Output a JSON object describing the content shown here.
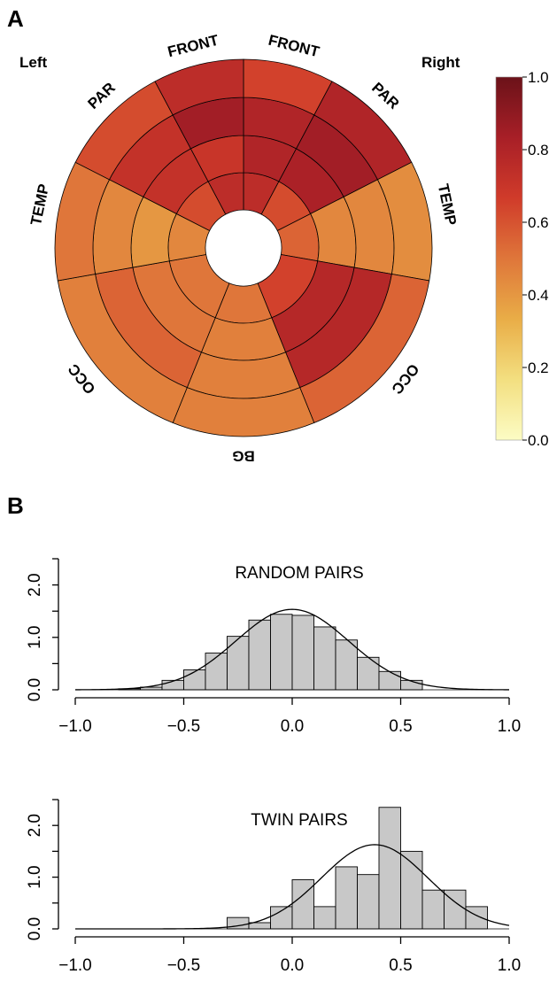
{
  "panels": {
    "a": "A",
    "b": "B"
  },
  "chart_data": [
    {
      "type": "heatmap",
      "panel": "A",
      "side_labels": {
        "left": "Left",
        "right": "Right"
      },
      "region_labels": [
        {
          "text": "FRONT",
          "angle": -14
        },
        {
          "text": "FRONT",
          "angle": 14
        },
        {
          "text": "PAR",
          "angle": 43
        },
        {
          "text": "TEMP",
          "angle": 78
        },
        {
          "text": "OCC",
          "angle": 129
        },
        {
          "text": "BG",
          "angle": 180
        },
        {
          "text": "OCC",
          "angle": -129
        },
        {
          "text": "TEMP",
          "angle": -78
        },
        {
          "text": "PAR",
          "angle": -43
        }
      ],
      "rings": 4,
      "sectors": [
        {
          "region": "Right FRONT",
          "start": 0,
          "end": 28,
          "values": [
            0.75,
            0.8,
            0.8,
            0.65
          ]
        },
        {
          "region": "Right PAR",
          "start": 28,
          "end": 63,
          "values": [
            0.62,
            0.82,
            0.85,
            0.8
          ]
        },
        {
          "region": "Right TEMP",
          "start": 63,
          "end": 100,
          "values": [
            0.55,
            0.45,
            0.45,
            0.43
          ]
        },
        {
          "region": "Right OCC",
          "start": 100,
          "end": 158,
          "values": [
            0.65,
            0.78,
            0.78,
            0.55
          ]
        },
        {
          "region": "BG",
          "start": 158,
          "end": 202,
          "values": [
            0.5,
            0.47,
            0.47,
            0.47
          ]
        },
        {
          "region": "Left OCC",
          "start": 202,
          "end": 260,
          "values": [
            0.5,
            0.5,
            0.55,
            0.47
          ]
        },
        {
          "region": "Left TEMP",
          "start": 260,
          "end": 297,
          "values": [
            0.45,
            0.4,
            0.45,
            0.5
          ]
        },
        {
          "region": "Left PAR",
          "start": 297,
          "end": 332,
          "values": [
            0.62,
            0.72,
            0.72,
            0.62
          ]
        },
        {
          "region": "Left FRONT",
          "start": 332,
          "end": 360,
          "values": [
            0.75,
            0.7,
            0.85,
            0.75
          ]
        }
      ],
      "colorbar": {
        "min": 0.0,
        "max": 1.0,
        "ticks": [
          "0.0",
          "0.2",
          "0.4",
          "0.6",
          "0.8",
          "1.0"
        ],
        "colors": [
          "#fcfcc4",
          "#f3df80",
          "#e9ad47",
          "#df763a",
          "#d03b2a",
          "#a81f27",
          "#6b1219"
        ]
      }
    },
    {
      "type": "bar",
      "panel": "B",
      "title": "RANDOM PAIRS",
      "xlim": [
        -1.0,
        1.0
      ],
      "ylim": [
        0,
        2.5
      ],
      "xticks": [
        "−1.0",
        "−0.5",
        "0.0",
        "0.5",
        "1.0"
      ],
      "yticks": [
        "0.0",
        "1.0",
        "2.0"
      ],
      "bin_edges": [
        -0.8,
        -0.7,
        -0.6,
        -0.5,
        -0.4,
        -0.3,
        -0.2,
        -0.1,
        0.0,
        0.1,
        0.2,
        0.3,
        0.4,
        0.5,
        0.6
      ],
      "values": [
        0.02,
        0.05,
        0.18,
        0.38,
        0.7,
        1.02,
        1.33,
        1.44,
        1.42,
        1.2,
        0.95,
        0.62,
        0.35,
        0.18
      ],
      "fit": {
        "mean": 0.0,
        "sd": 0.26
      }
    },
    {
      "type": "bar",
      "panel": "B",
      "title": "TWIN PAIRS",
      "xlim": [
        -1.0,
        1.0
      ],
      "ylim": [
        0,
        2.5
      ],
      "xticks": [
        "−1.0",
        "−0.5",
        "0.0",
        "0.5",
        "1.0"
      ],
      "yticks": [
        "0.0",
        "1.0",
        "2.0"
      ],
      "bin_edges": [
        -0.3,
        -0.2,
        -0.1,
        0.0,
        0.1,
        0.2,
        0.3,
        0.4,
        0.5,
        0.6,
        0.7,
        0.8,
        0.9
      ],
      "values": [
        0.22,
        0.12,
        0.43,
        0.95,
        0.43,
        1.2,
        1.05,
        2.35,
        1.5,
        0.75,
        0.75,
        0.43
      ],
      "fit": {
        "mean": 0.38,
        "sd": 0.245
      }
    }
  ]
}
